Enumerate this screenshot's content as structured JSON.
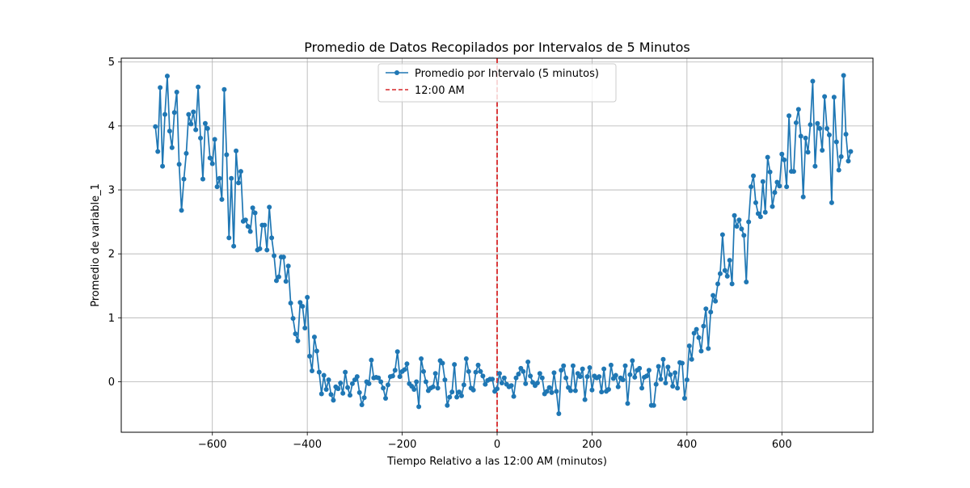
{
  "chart_data": {
    "type": "line",
    "title": "Promedio de Datos Recopilados por Intervalos de 5 Minutos",
    "xlabel": "Tiempo Relativo a las 12:00 AM (minutos)",
    "ylabel": "Promedio de variable_1",
    "xlim": [
      -792,
      792
    ],
    "ylim": [
      -0.79,
      5.06
    ],
    "xticks": [
      -600,
      -400,
      -200,
      0,
      200,
      400,
      600
    ],
    "xtick_labels": [
      "−600",
      "−400",
      "−200",
      "0",
      "200",
      "400",
      "600"
    ],
    "yticks": [
      0,
      1,
      2,
      3,
      4,
      5
    ],
    "ytick_labels": [
      "0",
      "1",
      "2",
      "3",
      "4",
      "5"
    ],
    "grid": true,
    "legend_position": "upper-center",
    "series": [
      {
        "name": "Promedio por Intervalo (5 minutos)",
        "color": "#1f77b4",
        "marker": "circle",
        "x_start": -720,
        "x_step": 5,
        "y": [
          3.99,
          3.6,
          4.6,
          3.37,
          4.18,
          4.78,
          3.92,
          3.66,
          4.21,
          4.53,
          3.4,
          2.68,
          3.17,
          3.57,
          4.18,
          4.03,
          4.22,
          3.94,
          4.61,
          3.81,
          3.17,
          4.04,
          3.96,
          3.5,
          3.41,
          3.79,
          3.05,
          3.18,
          2.85,
          4.57,
          3.55,
          2.25,
          3.18,
          2.12,
          3.61,
          3.11,
          3.29,
          2.51,
          2.53,
          2.43,
          2.35,
          2.72,
          2.64,
          2.06,
          2.08,
          2.45,
          2.45,
          2.06,
          2.73,
          2.25,
          1.97,
          1.58,
          1.64,
          1.95,
          1.95,
          1.57,
          1.81,
          1.23,
          0.99,
          0.75,
          0.64,
          1.24,
          1.18,
          0.84,
          1.32,
          0.4,
          0.17,
          0.7,
          0.48,
          0.15,
          -0.19,
          0.1,
          -0.12,
          0.03,
          -0.2,
          -0.29,
          -0.08,
          -0.11,
          -0.02,
          -0.18,
          0.15,
          -0.09,
          -0.21,
          -0.03,
          0.03,
          0.08,
          -0.17,
          -0.36,
          -0.25,
          0.0,
          -0.03,
          0.34,
          0.06,
          0.07,
          0.06,
          0.0,
          -0.1,
          -0.26,
          -0.05,
          0.08,
          0.09,
          0.18,
          0.47,
          0.08,
          0.16,
          0.19,
          0.28,
          -0.03,
          -0.07,
          -0.12,
          0.0,
          -0.39,
          0.36,
          0.16,
          0.0,
          -0.14,
          -0.1,
          -0.08,
          0.13,
          -0.1,
          0.33,
          0.29,
          0.03,
          -0.37,
          -0.24,
          -0.16,
          0.27,
          -0.24,
          -0.16,
          -0.22,
          -0.05,
          0.36,
          0.16,
          -0.1,
          -0.13,
          0.15,
          0.26,
          0.16,
          0.09,
          -0.04,
          0.02,
          0.04,
          0.04,
          -0.15,
          -0.11,
          0.13,
          -0.02,
          0.06,
          -0.04,
          -0.08,
          -0.06,
          -0.23,
          0.06,
          0.12,
          0.21,
          0.16,
          -0.03,
          0.31,
          0.09,
          -0.01,
          -0.06,
          -0.02,
          0.13,
          0.06,
          -0.19,
          -0.15,
          -0.09,
          -0.17,
          0.14,
          -0.15,
          -0.5,
          0.18,
          0.25,
          0.06,
          -0.09,
          -0.14,
          0.25,
          -0.14,
          0.13,
          0.08,
          0.2,
          -0.28,
          0.08,
          0.22,
          -0.13,
          0.09,
          0.06,
          0.08,
          -0.16,
          0.2,
          -0.15,
          -0.12,
          0.26,
          0.05,
          0.1,
          -0.08,
          0.06,
          0.03,
          0.25,
          -0.34,
          0.11,
          0.33,
          0.07,
          0.18,
          0.21,
          -0.1,
          0.07,
          0.09,
          0.18,
          -0.37,
          -0.37,
          -0.04,
          0.24,
          0.04,
          0.35,
          -0.02,
          0.23,
          0.11,
          -0.07,
          0.14,
          -0.1,
          0.3,
          0.29,
          -0.26,
          0.03,
          0.56,
          0.35,
          0.76,
          0.82,
          0.69,
          0.48,
          0.87,
          1.14,
          0.52,
          1.09,
          1.35,
          1.26,
          1.53,
          1.69,
          2.3,
          1.74,
          1.65,
          1.9,
          1.53,
          2.6,
          2.43,
          2.53,
          2.39,
          2.29,
          1.56,
          2.5,
          3.05,
          3.22,
          2.8,
          2.63,
          2.58,
          3.13,
          2.65,
          3.51,
          3.28,
          2.74,
          2.96,
          3.12,
          3.06,
          3.56,
          3.47,
          3.05,
          4.16,
          3.29,
          3.29,
          4.05,
          4.26,
          3.84,
          2.89,
          3.81,
          3.59,
          4.02,
          4.7,
          3.37,
          4.04,
          3.96,
          3.62,
          4.46,
          3.96,
          3.86,
          2.8,
          4.45,
          3.75,
          3.31,
          3.52,
          4.79,
          3.87,
          3.45,
          3.6
        ]
      },
      {
        "name": "12:00 AM",
        "color": "#d62728",
        "style": "dashed",
        "x": 0
      }
    ]
  }
}
